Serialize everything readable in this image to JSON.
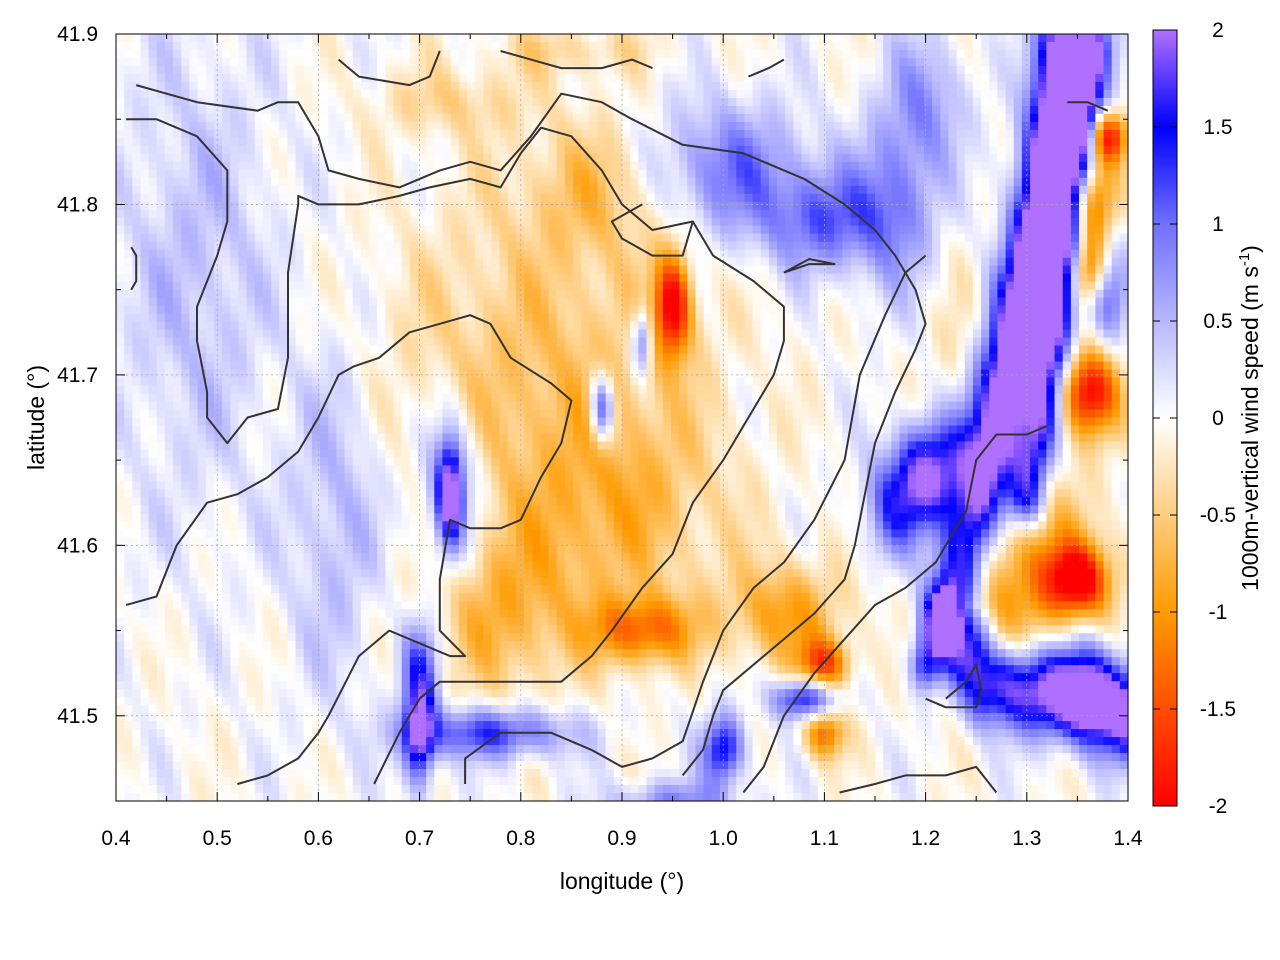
{
  "chart_data": {
    "type": "heatmap",
    "title": "",
    "xlabel": "longitude (°)",
    "ylabel": "latitude (°)",
    "xlim": [
      0.4,
      1.4
    ],
    "ylim": [
      41.45,
      41.9
    ],
    "x_ticks": [
      0.4,
      0.5,
      0.6,
      0.7,
      0.8,
      0.9,
      1.0,
      1.1,
      1.2,
      1.3,
      1.4
    ],
    "x_tick_labels": [
      "0.4",
      "0.5",
      "0.6",
      "0.7",
      "0.8",
      "0.9",
      "1.0",
      "1.1",
      "1.2",
      "1.3",
      "1.4"
    ],
    "y_ticks": [
      41.5,
      41.6,
      41.7,
      41.8,
      41.9
    ],
    "y_tick_labels": [
      "41.5",
      "41.6",
      "41.7",
      "41.8",
      "41.9"
    ],
    "grid": true,
    "colorbar": {
      "label": "1000m-vertical wind speed (m s",
      "label_superscript": "-1",
      "label_suffix": ")",
      "range": [
        -2,
        2
      ],
      "ticks": [
        2,
        1.5,
        1,
        0.5,
        0,
        -0.5,
        -1,
        -1.5,
        -2
      ],
      "tick_labels": [
        "2",
        "1.5",
        "1",
        "0.5",
        "0",
        "-0.5",
        "-1",
        "-1.5",
        "-2"
      ],
      "colors": [
        "#ff0000",
        "#ff9b00",
        "#ffffff",
        "#7070ff",
        "#0000ff",
        "#b070ff"
      ]
    },
    "contour_color": "#333333",
    "features": [
      {
        "kind": "blob",
        "cx": 0.82,
        "cy": 41.7,
        "rx": 0.16,
        "ry": 0.1,
        "v": -0.6
      },
      {
        "kind": "blob",
        "cx": 0.9,
        "cy": 41.62,
        "rx": 0.1,
        "ry": 0.06,
        "v": -0.55
      },
      {
        "kind": "blob",
        "cx": 0.78,
        "cy": 41.56,
        "rx": 0.08,
        "ry": 0.05,
        "v": -0.7
      },
      {
        "kind": "blob",
        "cx": 0.92,
        "cy": 41.55,
        "rx": 0.05,
        "ry": 0.02,
        "v": -1.3
      },
      {
        "kind": "blob",
        "cx": 0.95,
        "cy": 41.74,
        "rx": 0.018,
        "ry": 0.03,
        "v": -2.0
      },
      {
        "kind": "blob",
        "cx": 0.88,
        "cy": 41.81,
        "rx": 0.08,
        "ry": 0.04,
        "v": -0.55
      },
      {
        "kind": "blob",
        "cx": 0.73,
        "cy": 41.86,
        "rx": 0.08,
        "ry": 0.02,
        "v": -0.4
      },
      {
        "kind": "blob",
        "cx": 0.85,
        "cy": 41.89,
        "rx": 0.08,
        "ry": 0.015,
        "v": -0.4
      },
      {
        "kind": "blob",
        "cx": 1.06,
        "cy": 41.56,
        "rx": 0.06,
        "ry": 0.03,
        "v": -0.9
      },
      {
        "kind": "blob",
        "cx": 1.1,
        "cy": 41.53,
        "rx": 0.025,
        "ry": 0.015,
        "v": -1.5
      },
      {
        "kind": "blob",
        "cx": 1.1,
        "cy": 41.49,
        "rx": 0.02,
        "ry": 0.015,
        "v": -1.3
      },
      {
        "kind": "blob",
        "cx": 1.3,
        "cy": 41.58,
        "rx": 0.08,
        "ry": 0.06,
        "v": -1.0
      },
      {
        "kind": "blob",
        "cx": 1.35,
        "cy": 41.58,
        "rx": 0.03,
        "ry": 0.02,
        "v": -1.8
      },
      {
        "kind": "blob",
        "cx": 1.36,
        "cy": 41.69,
        "rx": 0.03,
        "ry": 0.025,
        "v": -2.0
      },
      {
        "kind": "blob",
        "cx": 1.36,
        "cy": 41.8,
        "rx": 0.025,
        "ry": 0.03,
        "v": -1.7
      },
      {
        "kind": "blob",
        "cx": 1.38,
        "cy": 41.84,
        "rx": 0.02,
        "ry": 0.015,
        "v": -1.8
      },
      {
        "kind": "blob",
        "cx": 1.36,
        "cy": 41.76,
        "rx": 0.02,
        "ry": 0.02,
        "v": -1.4
      },
      {
        "kind": "blob",
        "cx": 1.24,
        "cy": 41.7,
        "rx": 0.03,
        "ry": 0.05,
        "v": -0.5
      },
      {
        "kind": "blob",
        "cx": 1.0,
        "cy": 41.82,
        "rx": 0.08,
        "ry": 0.04,
        "v": 1.0
      },
      {
        "kind": "blob",
        "cx": 1.1,
        "cy": 41.79,
        "rx": 0.06,
        "ry": 0.03,
        "v": 1.0
      },
      {
        "kind": "blob",
        "cx": 1.17,
        "cy": 41.8,
        "rx": 0.04,
        "ry": 0.05,
        "v": 0.8
      },
      {
        "kind": "blob",
        "cx": 1.2,
        "cy": 41.86,
        "rx": 0.04,
        "ry": 0.04,
        "v": 0.7
      },
      {
        "kind": "blob",
        "cx": 0.48,
        "cy": 41.76,
        "rx": 0.08,
        "ry": 0.14,
        "v": 0.45
      },
      {
        "kind": "blob",
        "cx": 0.62,
        "cy": 41.62,
        "rx": 0.05,
        "ry": 0.1,
        "v": 0.55
      },
      {
        "kind": "blob",
        "cx": 0.73,
        "cy": 41.63,
        "rx": 0.03,
        "ry": 0.05,
        "v": 1.0
      },
      {
        "kind": "blob",
        "cx": 0.73,
        "cy": 41.63,
        "rx": 0.012,
        "ry": 0.03,
        "v": 1.9
      },
      {
        "kind": "blob",
        "cx": 0.77,
        "cy": 41.49,
        "rx": 0.08,
        "ry": 0.015,
        "v": 1.3
      },
      {
        "kind": "blob",
        "cx": 0.7,
        "cy": 41.49,
        "rx": 0.015,
        "ry": 0.03,
        "v": 1.9
      },
      {
        "kind": "blob",
        "cx": 0.7,
        "cy": 41.53,
        "rx": 0.02,
        "ry": 0.03,
        "v": 1.1
      },
      {
        "kind": "blob",
        "cx": 1.0,
        "cy": 41.48,
        "rx": 0.02,
        "ry": 0.02,
        "v": 1.6
      },
      {
        "kind": "blob",
        "cx": 0.88,
        "cy": 41.68,
        "rx": 0.012,
        "ry": 0.02,
        "v": 1.6
      },
      {
        "kind": "blob",
        "cx": 0.92,
        "cy": 41.72,
        "rx": 0.01,
        "ry": 0.02,
        "v": 1.2
      },
      {
        "kind": "blob",
        "cx": 1.08,
        "cy": 41.51,
        "rx": 0.03,
        "ry": 0.012,
        "v": 1.6
      },
      {
        "kind": "blob",
        "cx": 1.2,
        "cy": 41.64,
        "rx": 0.04,
        "ry": 0.03,
        "v": 1.2
      },
      {
        "kind": "blob",
        "cx": 1.36,
        "cy": 41.52,
        "rx": 0.04,
        "ry": 0.03,
        "v": 1.1
      },
      {
        "kind": "blob",
        "cx": 1.38,
        "cy": 41.75,
        "rx": 0.02,
        "ry": 0.03,
        "v": 1.0
      },
      {
        "kind": "blob",
        "cx": 0.95,
        "cy": 41.45,
        "rx": 0.06,
        "ry": 0.012,
        "v": 0.8
      },
      {
        "kind": "ridge",
        "pts": [
          [
            1.34,
            41.89
          ],
          [
            1.32,
            41.8
          ],
          [
            1.3,
            41.73
          ],
          [
            1.27,
            41.66
          ],
          [
            1.24,
            41.6
          ],
          [
            1.22,
            41.56
          ],
          [
            1.26,
            41.52
          ],
          [
            1.35,
            41.51
          ],
          [
            1.4,
            41.5
          ]
        ],
        "width": 0.025,
        "v": 2.1
      },
      {
        "kind": "ridge",
        "pts": [
          [
            1.36,
            41.89
          ],
          [
            1.34,
            41.78
          ],
          [
            1.32,
            41.7
          ],
          [
            1.3,
            41.63
          ]
        ],
        "width": 0.02,
        "v": 1.8
      },
      {
        "kind": "ridge",
        "pts": [
          [
            1.34,
            41.89
          ],
          [
            1.3,
            41.76
          ],
          [
            1.24,
            41.66
          ],
          [
            1.17,
            41.62
          ]
        ],
        "width": 0.03,
        "v": 1.0
      },
      {
        "kind": "ridge",
        "pts": [
          [
            1.22,
            41.56
          ],
          [
            1.2,
            41.53
          ]
        ],
        "width": 0.015,
        "v": 1.4
      }
    ],
    "contours": [
      [
        [
          0.42,
          41.87
        ],
        [
          0.48,
          41.86
        ],
        [
          0.54,
          41.855
        ],
        [
          0.56,
          41.86
        ],
        [
          0.58,
          41.86
        ],
        [
          0.6,
          41.84
        ],
        [
          0.61,
          41.82
        ],
        [
          0.64,
          41.815
        ],
        [
          0.68,
          41.81
        ],
        [
          0.72,
          41.82
        ],
        [
          0.75,
          41.825
        ],
        [
          0.78,
          41.82
        ],
        [
          0.81,
          41.84
        ],
        [
          0.84,
          41.865
        ],
        [
          0.88,
          41.86
        ],
        [
          0.91,
          41.85
        ],
        [
          0.96,
          41.835
        ],
        [
          1.02,
          41.83
        ],
        [
          1.08,
          41.815
        ],
        [
          1.12,
          41.8
        ],
        [
          1.15,
          41.785
        ],
        [
          1.17,
          41.77
        ],
        [
          1.19,
          41.75
        ],
        [
          1.2,
          41.73
        ],
        [
          1.19,
          41.715
        ],
        [
          1.17,
          41.69
        ],
        [
          1.15,
          41.66
        ],
        [
          1.14,
          41.63
        ],
        [
          1.13,
          41.6
        ],
        [
          1.12,
          41.58
        ],
        [
          1.09,
          41.56
        ],
        [
          1.06,
          41.545
        ],
        [
          1.03,
          41.53
        ],
        [
          1.0,
          41.515
        ],
        [
          0.99,
          41.5
        ],
        [
          0.98,
          41.48
        ],
        [
          0.96,
          41.465
        ]
      ],
      [
        [
          0.41,
          41.85
        ],
        [
          0.44,
          41.85
        ],
        [
          0.48,
          41.84
        ],
        [
          0.51,
          41.82
        ],
        [
          0.51,
          41.79
        ],
        [
          0.5,
          41.77
        ],
        [
          0.48,
          41.74
        ],
        [
          0.48,
          41.72
        ],
        [
          0.49,
          41.69
        ],
        [
          0.49,
          41.675
        ],
        [
          0.51,
          41.66
        ],
        [
          0.53,
          41.675
        ],
        [
          0.56,
          41.68
        ],
        [
          0.57,
          41.71
        ],
        [
          0.57,
          41.76
        ],
        [
          0.58,
          41.8
        ],
        [
          0.58,
          41.805
        ],
        [
          0.6,
          41.8
        ],
        [
          0.64,
          41.8
        ],
        [
          0.68,
          41.805
        ],
        [
          0.71,
          41.81
        ],
        [
          0.75,
          41.815
        ],
        [
          0.78,
          41.81
        ],
        [
          0.8,
          41.83
        ],
        [
          0.82,
          41.845
        ],
        [
          0.85,
          41.84
        ],
        [
          0.88,
          41.82
        ],
        [
          0.9,
          41.8
        ],
        [
          0.93,
          41.785
        ],
        [
          0.97,
          41.79
        ],
        [
          0.96,
          41.77
        ],
        [
          0.93,
          41.77
        ],
        [
          0.9,
          41.78
        ],
        [
          0.89,
          41.79
        ],
        [
          0.92,
          41.8
        ]
      ],
      [
        [
          0.41,
          41.565
        ],
        [
          0.44,
          41.57
        ],
        [
          0.46,
          41.6
        ],
        [
          0.49,
          41.625
        ],
        [
          0.52,
          41.63
        ],
        [
          0.55,
          41.64
        ],
        [
          0.58,
          41.655
        ],
        [
          0.6,
          41.675
        ],
        [
          0.62,
          41.7
        ],
        [
          0.635,
          41.705
        ],
        [
          0.66,
          41.71
        ],
        [
          0.69,
          41.725
        ],
        [
          0.72,
          41.73
        ],
        [
          0.75,
          41.735
        ],
        [
          0.77,
          41.73
        ],
        [
          0.79,
          41.71
        ],
        [
          0.83,
          41.695
        ],
        [
          0.85,
          41.685
        ],
        [
          0.84,
          41.66
        ],
        [
          0.82,
          41.64
        ],
        [
          0.8,
          41.615
        ],
        [
          0.78,
          41.61
        ],
        [
          0.75,
          41.61
        ],
        [
          0.73,
          41.615
        ],
        [
          0.72,
          41.58
        ],
        [
          0.72,
          41.55
        ],
        [
          0.745,
          41.535
        ],
        [
          0.73,
          41.535
        ],
        [
          0.71,
          41.54
        ],
        [
          0.67,
          41.55
        ],
        [
          0.64,
          41.535
        ],
        [
          0.61,
          41.5
        ],
        [
          0.6,
          41.49
        ],
        [
          0.58,
          41.475
        ],
        [
          0.55,
          41.465
        ],
        [
          0.52,
          41.46
        ]
      ],
      [
        [
          0.655,
          41.46
        ],
        [
          0.68,
          41.49
        ],
        [
          0.7,
          41.51
        ],
        [
          0.72,
          41.52
        ],
        [
          0.75,
          41.52
        ],
        [
          0.8,
          41.52
        ],
        [
          0.84,
          41.52
        ],
        [
          0.87,
          41.535
        ],
        [
          0.89,
          41.55
        ],
        [
          0.92,
          41.575
        ],
        [
          0.95,
          41.595
        ],
        [
          0.97,
          41.625
        ],
        [
          1.0,
          41.65
        ],
        [
          1.02,
          41.67
        ],
        [
          1.05,
          41.7
        ],
        [
          1.06,
          41.72
        ],
        [
          1.06,
          41.74
        ],
        [
          1.03,
          41.755
        ],
        [
          0.99,
          41.77
        ],
        [
          0.97,
          41.79
        ]
      ],
      [
        [
          0.745,
          41.46
        ],
        [
          0.745,
          41.475
        ],
        [
          0.78,
          41.49
        ],
        [
          0.83,
          41.49
        ],
        [
          0.87,
          41.48
        ],
        [
          0.9,
          41.47
        ],
        [
          0.93,
          41.475
        ],
        [
          0.96,
          41.485
        ],
        [
          0.98,
          41.52
        ],
        [
          1.0,
          41.55
        ],
        [
          1.03,
          41.575
        ],
        [
          1.06,
          41.59
        ],
        [
          1.09,
          41.615
        ],
        [
          1.12,
          41.65
        ],
        [
          1.135,
          41.7
        ],
        [
          1.16,
          41.735
        ],
        [
          1.18,
          41.76
        ],
        [
          1.2,
          41.77
        ]
      ],
      [
        [
          1.02,
          41.455
        ],
        [
          1.04,
          41.47
        ],
        [
          1.06,
          41.5
        ],
        [
          1.09,
          41.525
        ],
        [
          1.12,
          41.545
        ],
        [
          1.15,
          41.565
        ],
        [
          1.18,
          41.575
        ],
        [
          1.21,
          41.59
        ],
        [
          1.24,
          41.62
        ],
        [
          1.25,
          41.65
        ],
        [
          1.27,
          41.665
        ],
        [
          1.3,
          41.665
        ],
        [
          1.32,
          41.67
        ]
      ],
      [
        [
          1.115,
          41.455
        ],
        [
          1.15,
          41.46
        ],
        [
          1.18,
          41.465
        ],
        [
          1.22,
          41.465
        ],
        [
          1.25,
          41.47
        ],
        [
          1.27,
          41.455
        ]
      ],
      [
        [
          1.2,
          41.51
        ],
        [
          1.22,
          41.505
        ],
        [
          1.25,
          41.505
        ],
        [
          1.255,
          41.515
        ],
        [
          1.25,
          41.53
        ],
        [
          1.24,
          41.52
        ],
        [
          1.22,
          41.51
        ]
      ],
      [
        [
          1.34,
          41.86
        ],
        [
          1.36,
          41.86
        ],
        [
          1.38,
          41.855
        ]
      ],
      [
        [
          0.62,
          41.885
        ],
        [
          0.64,
          41.875
        ],
        [
          0.69,
          41.87
        ],
        [
          0.71,
          41.875
        ],
        [
          0.72,
          41.89
        ]
      ],
      [
        [
          0.78,
          41.89
        ],
        [
          0.81,
          41.885
        ],
        [
          0.84,
          41.88
        ],
        [
          0.88,
          41.88
        ],
        [
          0.91,
          41.885
        ],
        [
          0.93,
          41.88
        ]
      ],
      [
        [
          1.025,
          41.875
        ],
        [
          1.045,
          41.88
        ],
        [
          1.06,
          41.885
        ]
      ],
      [
        [
          0.415,
          41.75
        ],
        [
          0.42,
          41.755
        ],
        [
          0.42,
          41.77
        ],
        [
          0.415,
          41.775
        ]
      ],
      [
        [
          1.06,
          41.76
        ],
        [
          1.085,
          41.765
        ],
        [
          1.11,
          41.765
        ],
        [
          1.085,
          41.768
        ],
        [
          1.06,
          41.76
        ]
      ]
    ]
  }
}
